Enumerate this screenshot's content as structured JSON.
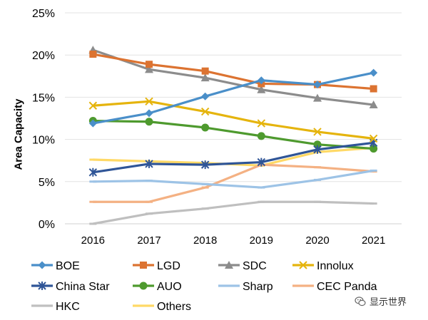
{
  "chart_data": {
    "type": "line",
    "title": "",
    "xlabel": "",
    "ylabel": "Area Capacity",
    "categories": [
      "2016",
      "2017",
      "2018",
      "2019",
      "2020",
      "2021"
    ],
    "ylim": [
      0,
      25
    ],
    "yticks": [
      0,
      5,
      10,
      15,
      20,
      25
    ],
    "ytick_labels": [
      "0%",
      "5%",
      "10%",
      "15%",
      "20%",
      "25%"
    ],
    "grid": true,
    "legend_position": "bottom",
    "series": [
      {
        "name": "BOE",
        "color": "#4a8fc9",
        "marker": "diamond",
        "values": [
          11.9,
          13.1,
          15.1,
          17.0,
          16.5,
          17.9
        ]
      },
      {
        "name": "LGD",
        "color": "#dc7331",
        "marker": "square",
        "values": [
          20.1,
          18.9,
          18.1,
          16.6,
          16.5,
          16.0
        ]
      },
      {
        "name": "SDC",
        "color": "#8c8c8c",
        "marker": "triangle",
        "values": [
          20.6,
          18.3,
          17.3,
          15.9,
          14.9,
          14.1
        ]
      },
      {
        "name": "Innolux",
        "color": "#e5b40d",
        "marker": "x",
        "values": [
          14.0,
          14.5,
          13.3,
          11.9,
          10.9,
          10.1
        ]
      },
      {
        "name": "China Star",
        "color": "#2f5597",
        "marker": "star",
        "values": [
          6.1,
          7.1,
          7.0,
          7.3,
          8.8,
          9.6
        ]
      },
      {
        "name": "AUO",
        "color": "#4e9a2e",
        "marker": "circle",
        "values": [
          12.2,
          12.1,
          11.4,
          10.4,
          9.4,
          8.9
        ]
      },
      {
        "name": "Sharp",
        "color": "#9dc3e6",
        "marker": "dash",
        "values": [
          5.0,
          5.1,
          4.7,
          4.3,
          5.2,
          6.3
        ]
      },
      {
        "name": "CEC Panda",
        "color": "#f4b183",
        "marker": "dash",
        "values": [
          2.6,
          2.6,
          4.3,
          7.0,
          6.7,
          6.2
        ]
      },
      {
        "name": "HKC",
        "color": "#bfbfbf",
        "marker": "dash",
        "values": [
          0.0,
          1.2,
          1.8,
          2.6,
          2.6,
          2.4
        ]
      },
      {
        "name": "Others",
        "color": "#ffd966",
        "marker": "dash",
        "values": [
          7.6,
          7.4,
          7.2,
          6.9,
          8.5,
          9.0
        ]
      }
    ]
  },
  "watermark": {
    "text": "显示世界",
    "icon": "wechat-icon",
    "color": "#666666"
  }
}
